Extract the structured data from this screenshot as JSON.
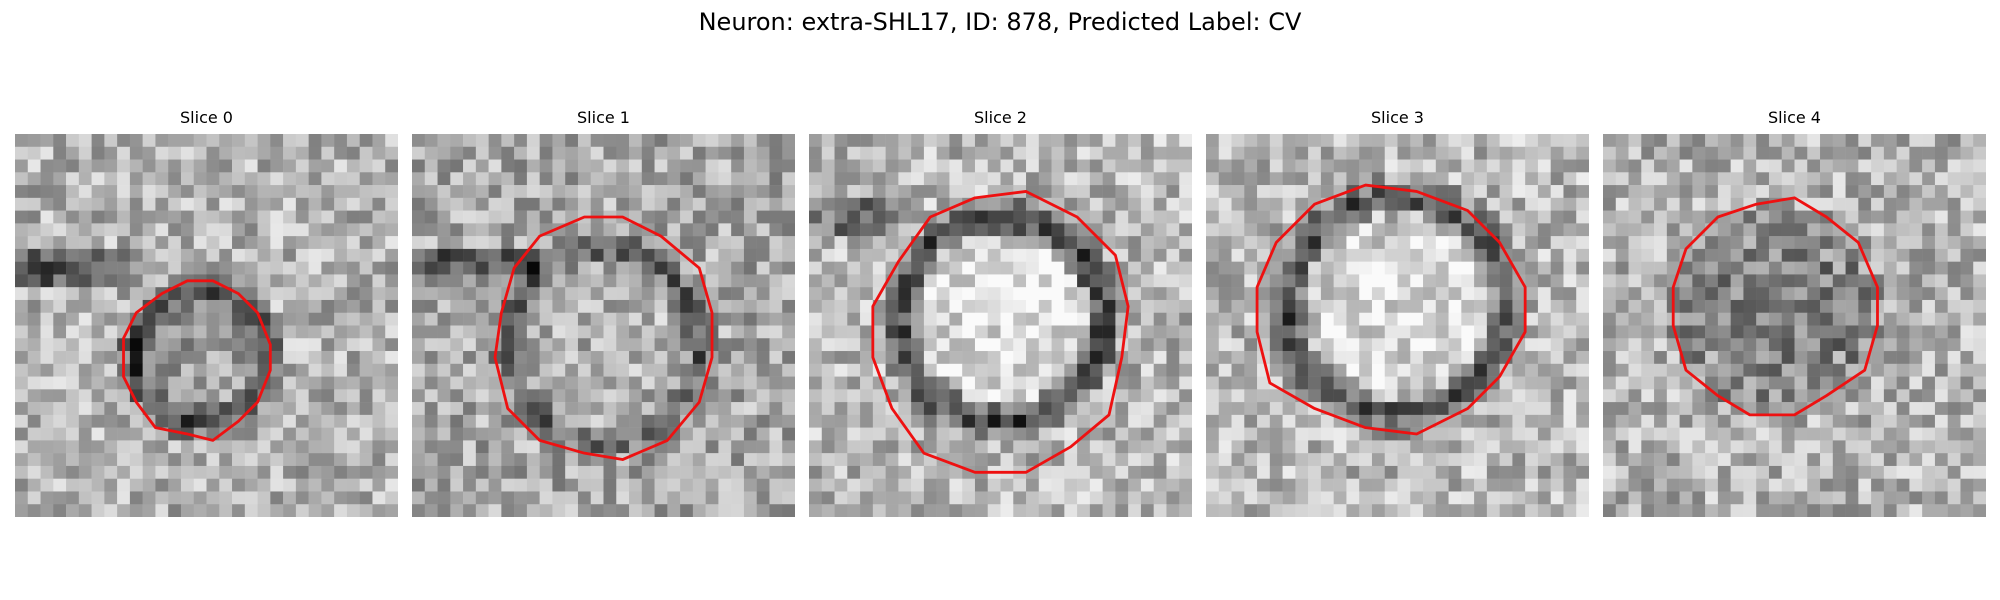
{
  "figure": {
    "title": "Neuron: extra-SHL17, ID: 878, Predicted Label: CV"
  },
  "colors": {
    "contour": "#ee1111",
    "background": "#ffffff",
    "colormap": "grayscale"
  },
  "panels": [
    {
      "title": "Slice 0"
    },
    {
      "title": "Slice 1"
    },
    {
      "title": "Slice 2"
    },
    {
      "title": "Slice 3"
    },
    {
      "title": "Slice 4"
    }
  ]
}
